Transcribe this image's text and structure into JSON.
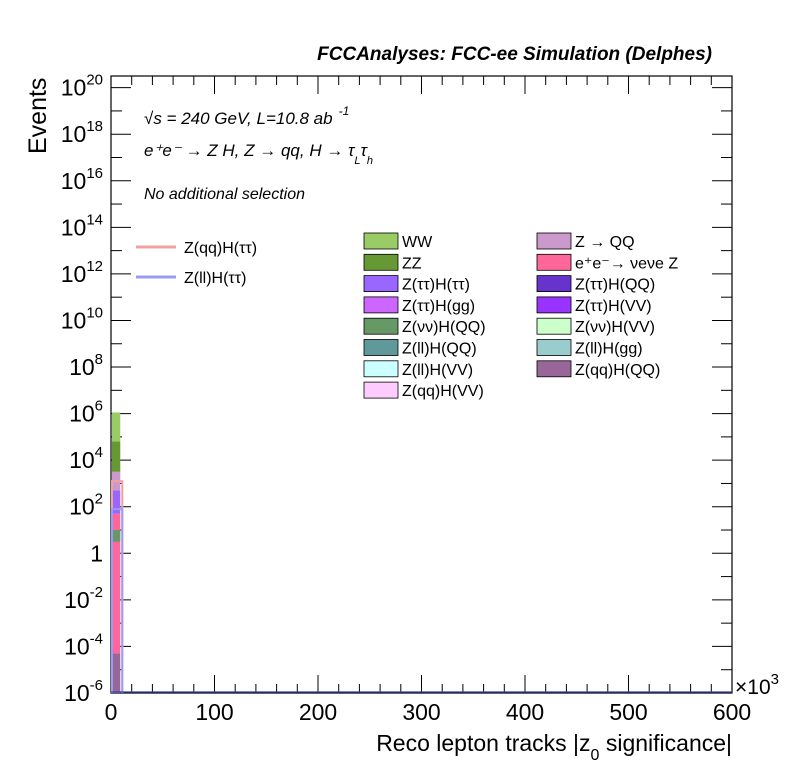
{
  "header": {
    "title": "FCCAnalyses: FCC-ee Simulation (Delphes)"
  },
  "annotations": {
    "energy": "√s = 240 GeV, L=10.8 ab",
    "energy_exp": "-1",
    "process_prefix": "e⁺e⁻ → Z H, Z → qq, H → ",
    "process_tau1": "τ",
    "process_sub1": "L",
    "process_tau2": "τ",
    "process_sub2": "h",
    "selection": "No additional selection"
  },
  "axes": {
    "ylabel": "Events",
    "xlabel": "Reco lepton tracks |z",
    "xlabel_sub": "0",
    "xlabel_tail": " significance|",
    "x_multiplier": "×10",
    "x_multiplier_exp": "3"
  },
  "legend_lines": [
    {
      "label": "Z(qq)H(ττ)",
      "color": "#f4a0a0"
    },
    {
      "label": "Z(ll)H(ττ)",
      "color": "#9b9bf5"
    }
  ],
  "legend_col1": [
    {
      "label": "WW",
      "color": "#99cc66"
    },
    {
      "label": "ZZ",
      "color": "#669933"
    },
    {
      "label": "Z(ττ)H(ττ)",
      "color": "#9966ff"
    },
    {
      "label": "Z(ττ)H(gg)",
      "color": "#cc66ff"
    },
    {
      "label": "Z(νν)H(QQ)",
      "color": "#669966"
    },
    {
      "label": "Z(ll)H(QQ)",
      "color": "#5f9999"
    },
    {
      "label": "Z(ll)H(VV)",
      "color": "#ccffff"
    },
    {
      "label": "Z(qq)H(VV)",
      "color": "#ffccff"
    }
  ],
  "legend_col2": [
    {
      "label": "Z → QQ",
      "color": "#cc99cc"
    },
    {
      "label": "e⁺e⁻→ νeνe Z",
      "color": "#ff6699"
    },
    {
      "label": "Z(ττ)H(QQ)",
      "color": "#6633cc"
    },
    {
      "label": "Z(ττ)H(VV)",
      "color": "#9933ff"
    },
    {
      "label": "Z(νν)H(VV)",
      "color": "#ccffcc"
    },
    {
      "label": "Z(ll)H(gg)",
      "color": "#99cccc"
    },
    {
      "label": "Z(qq)H(QQ)",
      "color": "#996699"
    }
  ],
  "chart_data": {
    "type": "bar",
    "log_y": true,
    "xlim": [
      0,
      600
    ],
    "ylim_exp": [
      -6,
      20.5
    ],
    "x_ticks": [
      "0",
      "100",
      "200",
      "300",
      "400",
      "500",
      "600"
    ],
    "y_ticks": [
      "10^-6",
      "10^-4",
      "10^-2",
      "1",
      "10^2",
      "10^4",
      "10^6",
      "10^8",
      "10^10",
      "10^12",
      "10^14",
      "10^16",
      "10^18",
      "10^20"
    ],
    "stacked_first_bin": {
      "x_range": [
        0,
        8
      ],
      "segments": [
        {
          "name": "Z(qq)H(QQ)",
          "color": "#996699",
          "from_exp": -6,
          "to_exp": -4.3
        },
        {
          "name": "e⁺e⁻→ νeνe Z",
          "color": "#ff6699",
          "from_exp": -4.3,
          "to_exp": 1.7
        },
        {
          "name": "Z(ττ)H(ττ)",
          "color": "#9966ff",
          "from_exp": 1.7,
          "to_exp": 2.7
        },
        {
          "name": "Z(νν)H(QQ)",
          "color": "#669966",
          "from_exp": 0.5,
          "to_exp": 1.0
        },
        {
          "name": "Z → QQ",
          "color": "#cc99cc",
          "from_exp": 2.7,
          "to_exp": 3.5
        },
        {
          "name": "ZZ",
          "color": "#669933",
          "from_exp": 3.5,
          "to_exp": 4.8
        },
        {
          "name": "WW",
          "color": "#99cc66",
          "from_exp": 4.8,
          "to_exp": 6.05
        }
      ]
    },
    "line_series": [
      {
        "name": "Z(qq)H(ττ)",
        "color": "#f4a0a0",
        "peak_exp": 3.1
      },
      {
        "name": "Z(ll)H(ττ)",
        "color": "#9b9bf5",
        "peak_exp": 1.9
      }
    ]
  }
}
